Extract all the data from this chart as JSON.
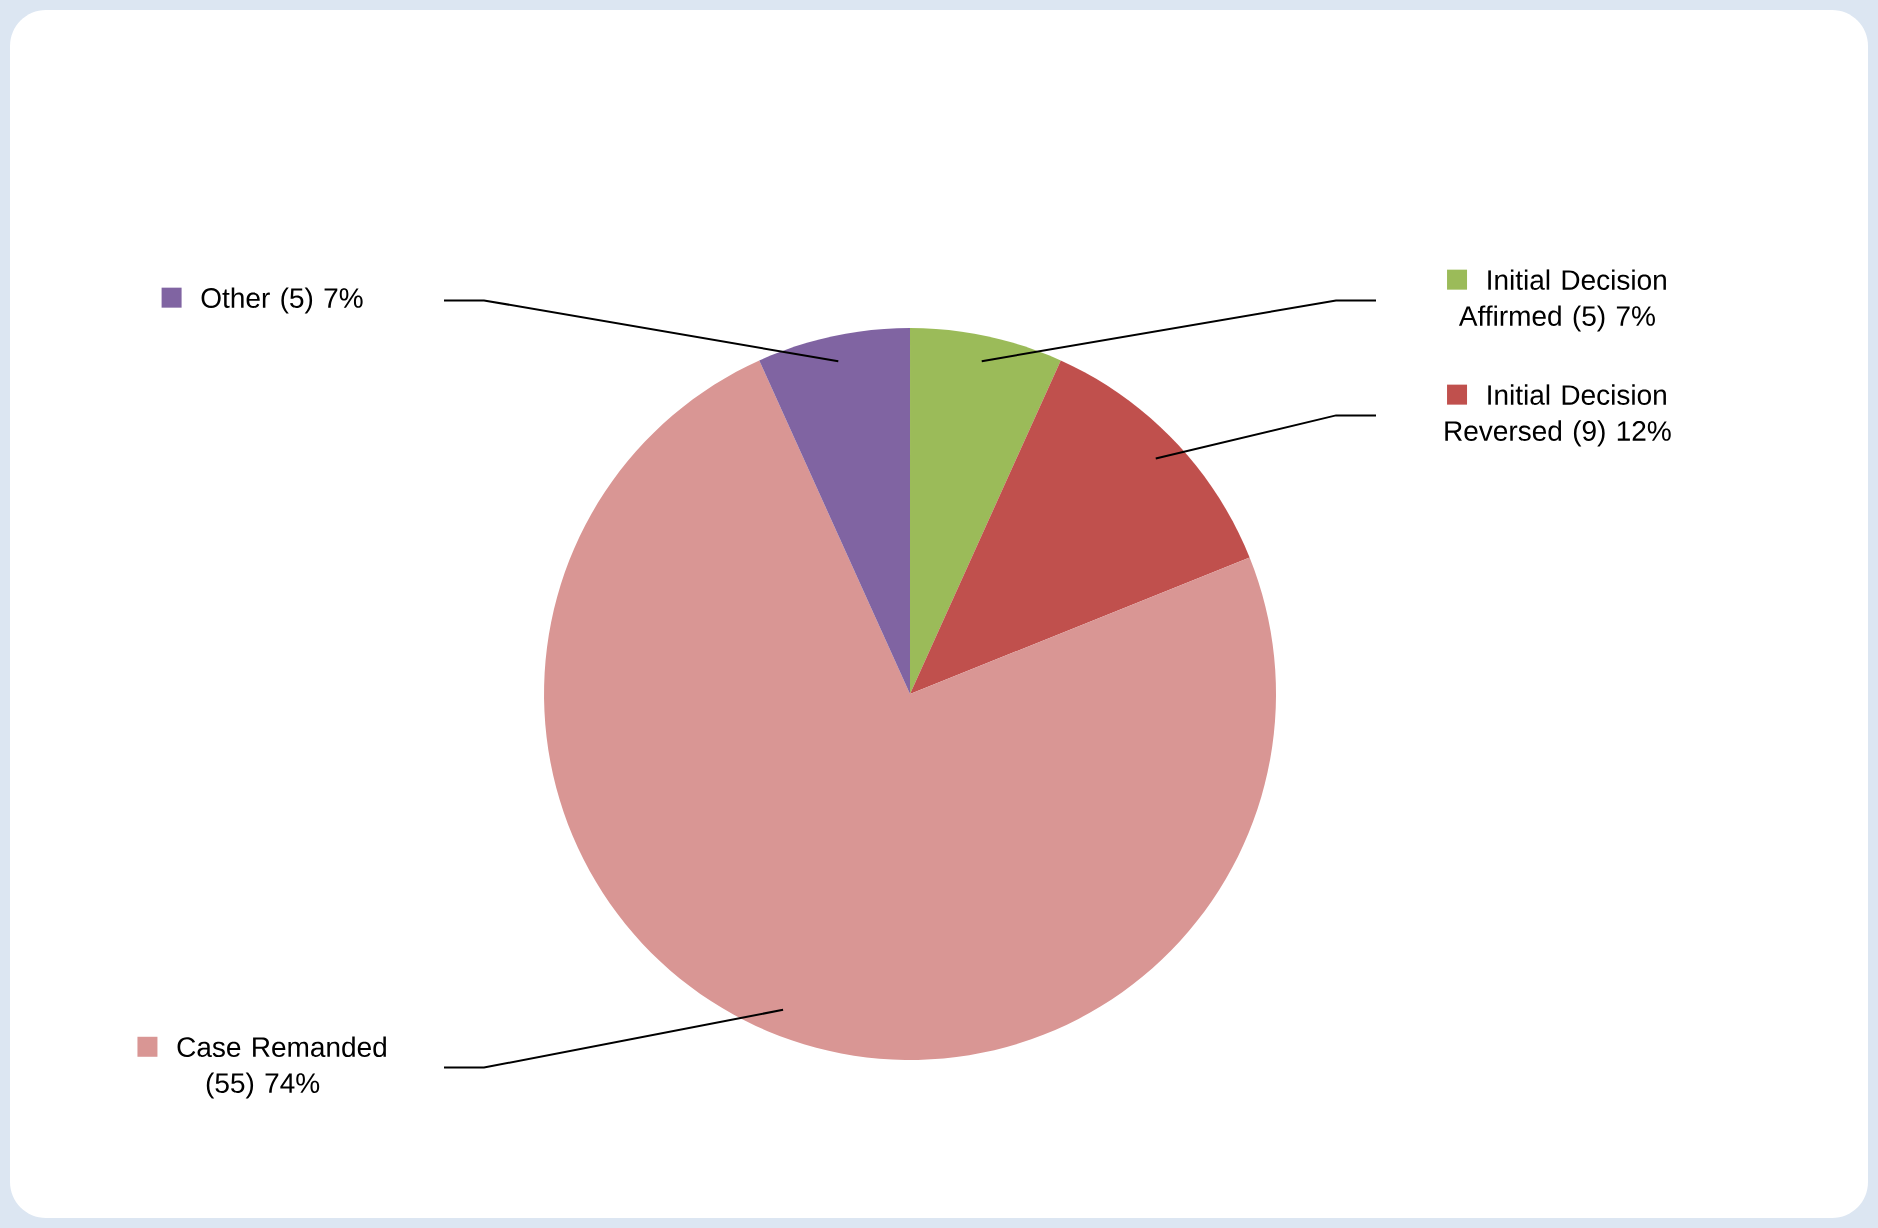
{
  "chart_data": {
    "type": "pie",
    "categories": [
      "Initial Decision Affirmed (5) 7%",
      "Initial Decision Reversed (9) 12%",
      "Case Remanded (55) 74%",
      "Other (5) 7%"
    ],
    "values": [
      5,
      9,
      55,
      5
    ],
    "colors": [
      "#9bbb59",
      "#c0504d",
      "#d99694",
      "#8064a2"
    ],
    "legend": "right"
  }
}
